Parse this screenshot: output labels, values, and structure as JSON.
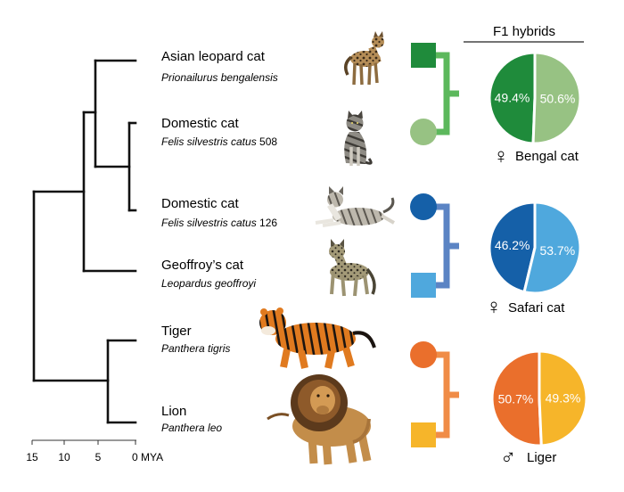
{
  "title": "F1 hybrids",
  "species": [
    {
      "common": "Asian leopard cat",
      "scientific": "Prionailurus bengalensis",
      "suffix": "",
      "illustration": "leopard-cat"
    },
    {
      "common": "Domestic cat",
      "scientific": "Felis silvestris catus",
      "suffix": " 508",
      "illustration": "tabby-cat-sitting"
    },
    {
      "common": "Domestic cat",
      "scientific": "Felis silvestris catus",
      "suffix": " 126",
      "illustration": "tabby-cat-lying"
    },
    {
      "common": "Geoffroy’s cat",
      "scientific": "Leopardus geoffroyi",
      "suffix": "",
      "illustration": "geoffroys-cat"
    },
    {
      "common": "Tiger",
      "scientific": "Panthera tigris",
      "suffix": "",
      "illustration": "tiger"
    },
    {
      "common": "Lion",
      "scientific": "Panthera leo",
      "suffix": "",
      "illustration": "lion"
    }
  ],
  "axis": {
    "ticks": [
      "15",
      "10",
      "5"
    ],
    "last_tick": "0 MYA",
    "tick_values": [
      15,
      10,
      5,
      0
    ]
  },
  "hybrids": [
    {
      "name": "Bengal cat",
      "sex": "female",
      "sex_symbol": "♀",
      "parent_colors": [
        "#1f8b3b",
        "#97c283"
      ],
      "pedigree_color": "#5cb85c",
      "parent_shapes": [
        "square",
        "circle"
      ],
      "slices": [
        {
          "label": "49.4%",
          "value": 49.4,
          "color": "#1f8b3b"
        },
        {
          "label": "50.6%",
          "value": 50.6,
          "color": "#97c283"
        }
      ]
    },
    {
      "name": "Safari cat",
      "sex": "female",
      "sex_symbol": "♀",
      "parent_colors": [
        "#1560a8",
        "#4fa8dd"
      ],
      "pedigree_color": "#5b84c4",
      "parent_shapes": [
        "circle",
        "square"
      ],
      "slices": [
        {
          "label": "46.2%",
          "value": 46.2,
          "color": "#1560a8"
        },
        {
          "label": "53.7%",
          "value": 53.7,
          "color": "#4fa8dd"
        }
      ]
    },
    {
      "name": "Liger",
      "sex": "male",
      "sex_symbol": "♂",
      "parent_colors": [
        "#ea6f2c",
        "#f6b52a"
      ],
      "pedigree_color": "#f08c47",
      "parent_shapes": [
        "circle",
        "square"
      ],
      "slices": [
        {
          "label": "50.7%",
          "value": 50.7,
          "color": "#ea6f2c"
        },
        {
          "label": "49.3%",
          "value": 49.3,
          "color": "#f6b52a"
        }
      ]
    }
  ]
}
